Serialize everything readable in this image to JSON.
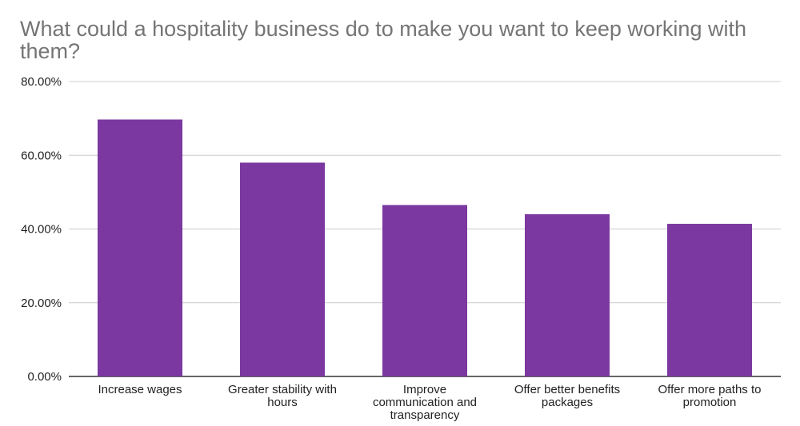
{
  "chart_data": {
    "type": "bar",
    "title": "What could a hospitality business do to make you want to keep working with them?",
    "categories": [
      "Increase wages",
      "Greater stability with hours",
      "Improve communication and transparency",
      "Offer better benefits packages",
      "Offer more paths to promotion"
    ],
    "category_lines": [
      [
        "Increase wages"
      ],
      [
        "Greater stability with",
        "hours"
      ],
      [
        "Improve",
        "communication and",
        "transparency"
      ],
      [
        "Offer better benefits",
        "packages"
      ],
      [
        "Offer more paths to",
        "promotion"
      ]
    ],
    "values": [
      69.7,
      58.0,
      46.5,
      44.0,
      41.4
    ],
    "ylim": [
      0,
      80
    ],
    "yticks": [
      0,
      20,
      40,
      60,
      80
    ],
    "ytick_labels": [
      "0.00%",
      "20.00%",
      "40.00%",
      "60.00%",
      "80.00%"
    ],
    "xlabel": "",
    "ylabel": "",
    "grid": true,
    "legend": "none",
    "bar_color": "#7b38a0"
  }
}
